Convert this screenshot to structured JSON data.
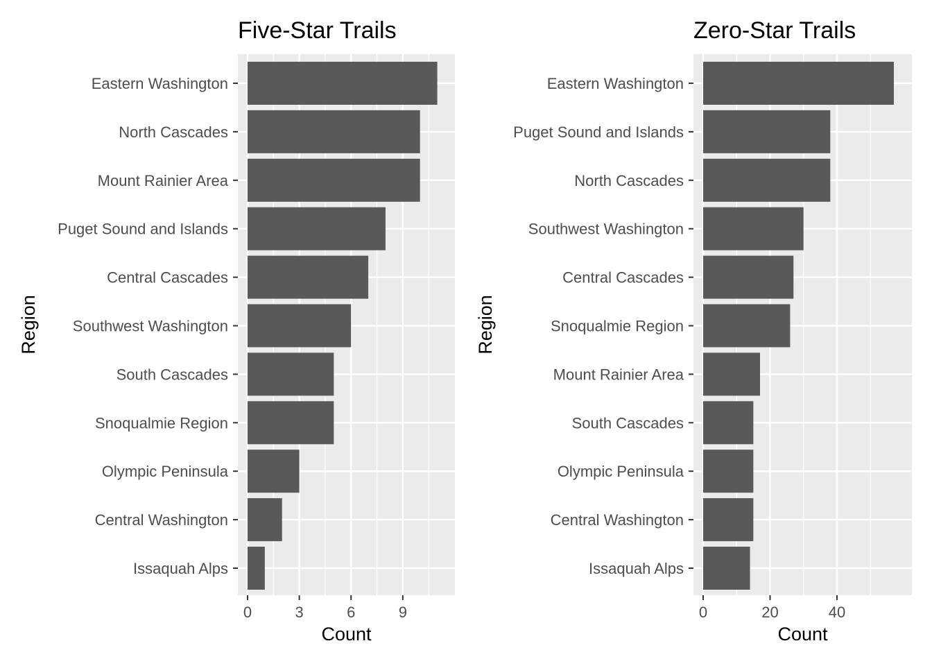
{
  "chart_data": [
    {
      "type": "bar",
      "orientation": "horizontal",
      "title": "Five-Star Trails",
      "xlabel": "Count",
      "ylabel": "Region",
      "xlim": [
        0,
        11.5
      ],
      "xticks": [
        0,
        3,
        6,
        9
      ],
      "grid": true,
      "bar_color": "#595959",
      "panel_color": "#ebebeb",
      "categories": [
        "Eastern Washington",
        "North Cascades",
        "Mount Rainier Area",
        "Puget Sound and Islands",
        "Central Cascades",
        "Southwest Washington",
        "South Cascades",
        "Snoqualmie Region",
        "Olympic Peninsula",
        "Central Washington",
        "Issaquah Alps"
      ],
      "values": [
        11,
        10,
        10,
        8,
        7,
        6,
        5,
        5,
        3,
        2,
        1
      ]
    },
    {
      "type": "bar",
      "orientation": "horizontal",
      "title": "Zero-Star Trails",
      "xlabel": "Count",
      "ylabel": "Region",
      "xlim": [
        0,
        59.7
      ],
      "xticks": [
        0,
        20,
        40
      ],
      "grid": true,
      "bar_color": "#595959",
      "panel_color": "#ebebeb",
      "categories": [
        "Eastern Washington",
        "Puget Sound and Islands",
        "North Cascades",
        "Southwest Washington",
        "Central Cascades",
        "Snoqualmie Region",
        "Mount Rainier Area",
        "South Cascades",
        "Olympic Peninsula",
        "Central Washington",
        "Issaquah Alps"
      ],
      "values": [
        57,
        38,
        38,
        30,
        27,
        26,
        17,
        15,
        15,
        15,
        14
      ]
    }
  ]
}
